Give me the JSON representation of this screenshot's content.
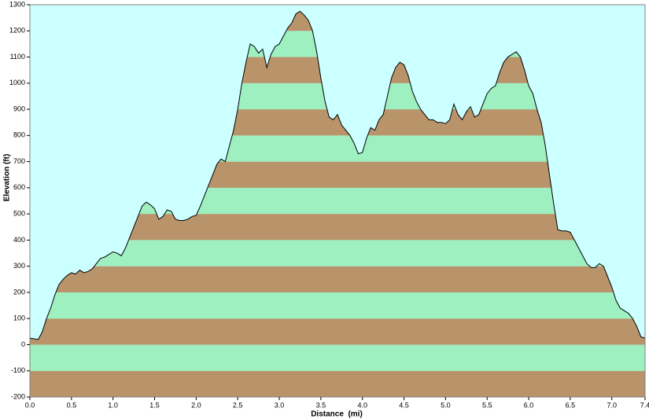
{
  "chart_data": {
    "type": "area",
    "x_label": "Distance  (mi)",
    "y_label": "Elevation (ft)",
    "background": "#ccffff",
    "band_colors": [
      "#b9946a",
      "#9ef0c0"
    ],
    "line_color": "#000000",
    "xlim": [
      0,
      7.4
    ],
    "ylim": [
      -200,
      1300
    ],
    "xticks": [
      {
        "value": 0,
        "label": "0.0"
      },
      0.5,
      {
        "value": 1,
        "label": "1.0"
      },
      1.5,
      {
        "value": 2,
        "label": "2.0"
      },
      2.5,
      {
        "value": 3,
        "label": "3.0"
      },
      3.5,
      {
        "value": 4,
        "label": "4.0"
      },
      4.5,
      {
        "value": 5,
        "label": "5.0"
      },
      5.5,
      {
        "value": 6,
        "label": "6.0"
      },
      6.5,
      {
        "value": 7,
        "label": "7.0"
      },
      7.4
    ],
    "yticks": [
      -200,
      -100,
      0,
      100,
      200,
      300,
      400,
      500,
      600,
      700,
      800,
      900,
      1000,
      1100,
      1200,
      1300
    ],
    "x": [
      0,
      0.1,
      0.15,
      0.2,
      0.25,
      0.3,
      0.35,
      0.4,
      0.45,
      0.5,
      0.55,
      0.6,
      0.65,
      0.7,
      0.75,
      0.8,
      0.85,
      0.9,
      0.95,
      1.0,
      1.05,
      1.1,
      1.15,
      1.2,
      1.25,
      1.3,
      1.35,
      1.4,
      1.45,
      1.5,
      1.55,
      1.6,
      1.65,
      1.7,
      1.75,
      1.8,
      1.85,
      1.9,
      1.95,
      2.0,
      2.05,
      2.1,
      2.15,
      2.2,
      2.25,
      2.3,
      2.35,
      2.4,
      2.45,
      2.5,
      2.55,
      2.6,
      2.65,
      2.7,
      2.75,
      2.8,
      2.85,
      2.9,
      2.95,
      3.0,
      3.05,
      3.1,
      3.15,
      3.2,
      3.25,
      3.3,
      3.35,
      3.4,
      3.45,
      3.5,
      3.55,
      3.6,
      3.65,
      3.7,
      3.75,
      3.8,
      3.85,
      3.9,
      3.95,
      4.0,
      4.05,
      4.1,
      4.15,
      4.2,
      4.25,
      4.3,
      4.35,
      4.4,
      4.45,
      4.5,
      4.55,
      4.6,
      4.65,
      4.7,
      4.75,
      4.8,
      4.85,
      4.9,
      4.95,
      5.0,
      5.05,
      5.1,
      5.15,
      5.2,
      5.25,
      5.3,
      5.35,
      5.4,
      5.45,
      5.5,
      5.55,
      5.6,
      5.65,
      5.7,
      5.75,
      5.8,
      5.85,
      5.9,
      5.95,
      6.0,
      6.05,
      6.1,
      6.15,
      6.2,
      6.25,
      6.3,
      6.35,
      6.4,
      6.45,
      6.5,
      6.55,
      6.6,
      6.65,
      6.7,
      6.75,
      6.8,
      6.85,
      6.9,
      6.95,
      7.0,
      7.05,
      7.1,
      7.15,
      7.2,
      7.25,
      7.3,
      7.35,
      7.4
    ],
    "values": [
      25,
      20,
      50,
      100,
      140,
      190,
      230,
      250,
      265,
      275,
      270,
      285,
      275,
      280,
      290,
      310,
      330,
      335,
      345,
      355,
      350,
      340,
      370,
      410,
      450,
      490,
      530,
      545,
      535,
      520,
      480,
      490,
      515,
      510,
      480,
      475,
      475,
      480,
      490,
      495,
      530,
      570,
      610,
      650,
      690,
      710,
      700,
      760,
      820,
      900,
      1000,
      1080,
      1150,
      1140,
      1115,
      1130,
      1060,
      1110,
      1140,
      1150,
      1180,
      1210,
      1230,
      1265,
      1275,
      1260,
      1240,
      1200,
      1120,
      1020,
      930,
      870,
      860,
      880,
      840,
      820,
      800,
      770,
      730,
      735,
      790,
      830,
      820,
      860,
      880,
      950,
      1020,
      1060,
      1080,
      1070,
      1030,
      970,
      930,
      900,
      880,
      860,
      860,
      850,
      850,
      845,
      860,
      920,
      880,
      860,
      890,
      910,
      870,
      880,
      920,
      960,
      980,
      990,
      1040,
      1080,
      1100,
      1110,
      1120,
      1100,
      1050,
      990,
      960,
      900,
      850,
      760,
      650,
      540,
      440,
      435,
      435,
      430,
      400,
      370,
      340,
      310,
      295,
      295,
      310,
      300,
      260,
      220,
      170,
      140,
      130,
      120,
      100,
      70,
      30,
      25
    ]
  }
}
